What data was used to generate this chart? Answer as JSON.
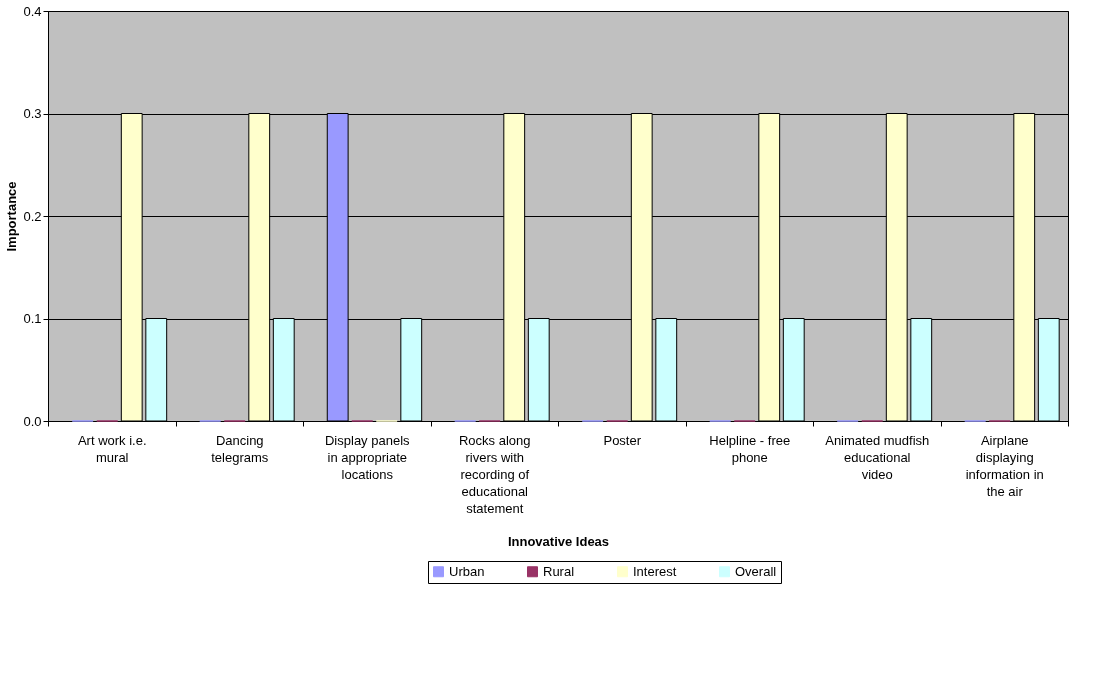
{
  "chart_data": {
    "type": "bar",
    "xlabel": "Innovative Ideas",
    "ylabel": "Importance",
    "categories": [
      "Art work i.e. mural",
      "Dancing telegrams",
      "Display panels in appropriate locations",
      "Rocks along rivers with recording of educational statement",
      "Poster",
      "Helpline - free phone",
      "Animated mudfish educational video",
      "Airplane displaying information in the air"
    ],
    "series": [
      {
        "name": "Urban",
        "color": "#9999ff",
        "values": [
          0,
          0,
          0.3,
          0,
          0,
          0,
          0,
          0
        ]
      },
      {
        "name": "Rural",
        "color": "#993366",
        "values": [
          0,
          0,
          0,
          0,
          0,
          0,
          0,
          0
        ]
      },
      {
        "name": "Interest",
        "color": "#ffffcc",
        "values": [
          0.3,
          0.3,
          0,
          0.3,
          0.3,
          0.3,
          0.3,
          0.3
        ]
      },
      {
        "name": "Overall",
        "color": "#ccffff",
        "values": [
          0.1,
          0.1,
          0.1,
          0.1,
          0.1,
          0.1,
          0.1,
          0.1
        ]
      }
    ],
    "ylim": [
      0,
      0.4
    ],
    "yticks": [
      {
        "value": 0,
        "label": "0.0"
      },
      {
        "value": 0.1,
        "label": "0.1"
      },
      {
        "value": 0.2,
        "label": "0.2"
      },
      {
        "value": 0.3,
        "label": "0.3"
      },
      {
        "value": 0.4,
        "label": "0.4"
      }
    ],
    "grid": "y",
    "legend": "bottom"
  }
}
